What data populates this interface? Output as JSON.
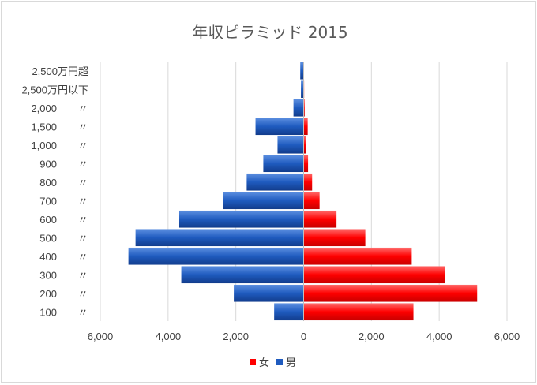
{
  "chart_data": {
    "type": "bar",
    "orientation": "horizontal",
    "stacked": "diverging",
    "title": "年収ピラミッド 2015",
    "categories": [
      "2,500万円超",
      "2,500万円以下",
      "2,000",
      "1,500",
      "1,000",
      "900",
      "800",
      "700",
      "600",
      "500",
      "400",
      "300",
      "200",
      "100"
    ],
    "category_suffix": [
      "",
      "",
      "〃",
      "〃",
      "〃",
      "〃",
      "〃",
      "〃",
      "〃",
      "〃",
      "〃",
      "〃",
      "〃",
      "〃"
    ],
    "series": [
      {
        "name": "女",
        "color": "#ff0000",
        "values": [
          10,
          15,
          30,
          120,
          80,
          130,
          250,
          470,
          970,
          1820,
          3190,
          4180,
          5120,
          3240
        ]
      },
      {
        "name": "男",
        "color": "#1f5bbf",
        "values": [
          -100,
          -80,
          -300,
          -1420,
          -770,
          -1190,
          -1680,
          -2370,
          -3670,
          -4960,
          -5170,
          -3610,
          -2060,
          -870
        ]
      }
    ],
    "xlim": [
      -6000,
      6000
    ],
    "xticks": [
      -6000,
      -4000,
      -2000,
      0,
      2000,
      4000,
      6000
    ],
    "xtick_labels": [
      "6,000",
      "4,000",
      "2,000",
      "0",
      "2,000",
      "4,000",
      "6,000"
    ],
    "grid": "vertical",
    "legend": "bottom"
  }
}
